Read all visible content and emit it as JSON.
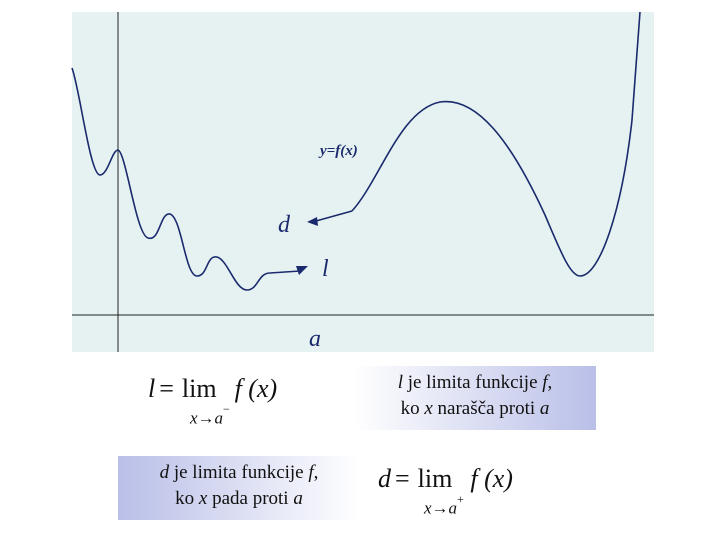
{
  "graph": {
    "curve_label": "y=f(x)",
    "label_d": "d",
    "label_l": "l",
    "label_a": "a",
    "colors": {
      "panel": "#e6f2f2",
      "curve": "#1a2a6c",
      "axis": "#222222",
      "label_text": "#1a2a6c"
    }
  },
  "box_left_limit": {
    "lhs": "l",
    "eq": "=",
    "lim": "lim",
    "fx": "f (x)",
    "sub_var": "x",
    "sub_arrow": "→",
    "sub_point": "a",
    "sup": "−"
  },
  "box_left_text": {
    "sym": "l",
    "line1_rest": " je limita funkcije ",
    "fn": "f",
    "line1_end": ",",
    "line2_start": "ko ",
    "var": "x",
    "line2_mid": " narašča proti ",
    "point": "a"
  },
  "box_right_text": {
    "sym": "d",
    "line1_rest": " je limita funkcije ",
    "fn": "f",
    "line1_end": ",",
    "line2_start": "ko ",
    "var": "x",
    "line2_mid": " pada proti ",
    "point": "a"
  },
  "box_right_limit": {
    "lhs": "d",
    "eq": "=",
    "lim": "lim",
    "fx": "f (x)",
    "sub_var": "x",
    "sub_arrow": "→",
    "sub_point": "a",
    "sup": "+"
  }
}
